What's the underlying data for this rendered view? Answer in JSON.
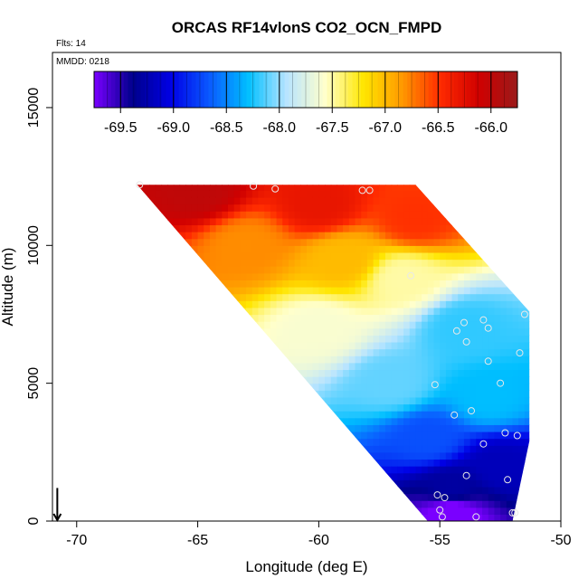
{
  "chart_data": {
    "type": "heatmap",
    "title": "ORCAS RF14vlonS CO2_OCN_FMPD",
    "xlabel": "Longitude (deg E)",
    "ylabel": "Altitude (m)",
    "xlim": [
      -71,
      -50
    ],
    "ylim": [
      0,
      17000
    ],
    "x_ticks": [
      -70,
      -65,
      -60,
      -55,
      -50
    ],
    "x_tick_labels": [
      "-70",
      "-65",
      "-60",
      "-55",
      "-50"
    ],
    "y_ticks": [
      0,
      5000,
      10000,
      15000
    ],
    "y_tick_labels": [
      "0",
      "5000",
      "10000",
      "15000"
    ],
    "annotations": {
      "flights": "Flts: 14",
      "date": "MMDD: 0218"
    },
    "colorbar": {
      "range": [
        -69.75,
        -65.75
      ],
      "ticks": [
        -69.5,
        -69.0,
        -68.5,
        -68.0,
        -67.5,
        -67.0,
        -66.5,
        -66.0
      ],
      "tick_labels": [
        "-69.5",
        "-69.0",
        "-68.5",
        "-68.0",
        "-67.5",
        "-67.0",
        "-66.5",
        "-66.0"
      ],
      "major_lines": [
        -69.5,
        -69.0,
        -68.5,
        -68.0,
        -67.5,
        -67.0,
        -66.5,
        -66.0
      ],
      "colors": [
        "#7a00ff",
        "#00008b",
        "#0000e6",
        "#0a5aff",
        "#00bfff",
        "#b8e4ff",
        "#ffffcc",
        "#ffe600",
        "#ff9900",
        "#ff2a00",
        "#d00000",
        "#9a1a1a"
      ]
    },
    "region_polygon": [
      [
        -67.5,
        12200
      ],
      [
        -56.0,
        12200
      ],
      [
        -51.3,
        7600
      ],
      [
        -51.3,
        2900
      ],
      [
        -52.0,
        0
      ],
      [
        -55.5,
        0
      ],
      [
        -67.5,
        12200
      ]
    ],
    "field_control_points": [
      {
        "lon": -65.0,
        "alt": 12000,
        "value": -66.0
      },
      {
        "lon": -60.0,
        "alt": 11500,
        "value": -66.3
      },
      {
        "lon": -56.0,
        "alt": 11000,
        "value": -66.5
      },
      {
        "lon": -63.0,
        "alt": 10000,
        "value": -66.8
      },
      {
        "lon": -59.0,
        "alt": 9500,
        "value": -67.0
      },
      {
        "lon": -60.0,
        "alt": 7000,
        "value": -67.6
      },
      {
        "lon": -56.5,
        "alt": 8800,
        "value": -67.5
      },
      {
        "lon": -54.0,
        "alt": 7000,
        "value": -68.2
      },
      {
        "lon": -57.0,
        "alt": 5000,
        "value": -68.1
      },
      {
        "lon": -53.0,
        "alt": 4500,
        "value": -68.3
      },
      {
        "lon": -55.5,
        "alt": 3000,
        "value": -68.7
      },
      {
        "lon": -52.5,
        "alt": 2000,
        "value": -69.2
      },
      {
        "lon": -54.5,
        "alt": 1200,
        "value": -69.3
      },
      {
        "lon": -54.5,
        "alt": 300,
        "value": -69.8
      }
    ],
    "observation_points": [
      {
        "lon": -67.4,
        "alt": 12200
      },
      {
        "lon": -62.7,
        "alt": 12150
      },
      {
        "lon": -61.8,
        "alt": 12050
      },
      {
        "lon": -58.2,
        "alt": 12000
      },
      {
        "lon": -57.9,
        "alt": 12000
      },
      {
        "lon": -56.2,
        "alt": 8900
      },
      {
        "lon": -53.2,
        "alt": 7300
      },
      {
        "lon": -54.0,
        "alt": 7200
      },
      {
        "lon": -54.3,
        "alt": 6900
      },
      {
        "lon": -53.0,
        "alt": 7000
      },
      {
        "lon": -51.5,
        "alt": 7500
      },
      {
        "lon": -53.9,
        "alt": 6500
      },
      {
        "lon": -51.7,
        "alt": 6100
      },
      {
        "lon": -53.0,
        "alt": 5800
      },
      {
        "lon": -55.2,
        "alt": 4950
      },
      {
        "lon": -52.5,
        "alt": 5000
      },
      {
        "lon": -53.7,
        "alt": 4000
      },
      {
        "lon": -54.4,
        "alt": 3850
      },
      {
        "lon": -52.3,
        "alt": 3200
      },
      {
        "lon": -51.8,
        "alt": 3100
      },
      {
        "lon": -53.2,
        "alt": 2800
      },
      {
        "lon": -53.9,
        "alt": 1650
      },
      {
        "lon": -52.2,
        "alt": 1500
      },
      {
        "lon": -55.1,
        "alt": 950
      },
      {
        "lon": -54.8,
        "alt": 850
      },
      {
        "lon": -55.0,
        "alt": 400
      },
      {
        "lon": -54.9,
        "alt": 150
      },
      {
        "lon": -53.5,
        "alt": 150
      },
      {
        "lon": -52.0,
        "alt": 300
      },
      {
        "lon": -51.9,
        "alt": 300
      }
    ],
    "marker": {
      "lon": -70.8,
      "alt": 500,
      "icon": "down-arrow-icon"
    },
    "grid": false
  }
}
